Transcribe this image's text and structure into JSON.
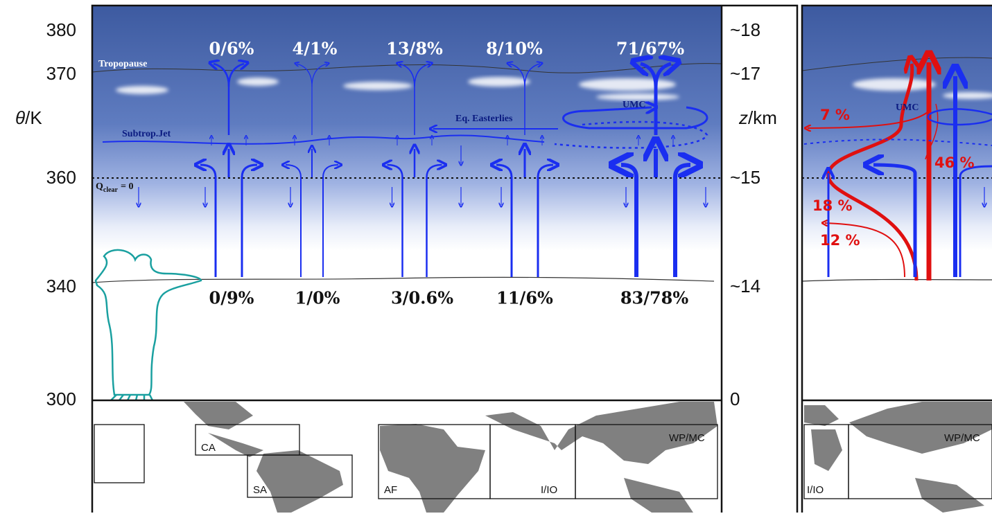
{
  "left_axis": {
    "ticks": [
      "380",
      "370",
      "360",
      "340",
      "300"
    ],
    "label_symbol": "θ",
    "label_unit": "/K"
  },
  "right_axis": {
    "ticks": [
      "~18",
      "~17",
      "~15",
      "~14",
      "0"
    ],
    "label_symbol": "z",
    "label_unit": "/km"
  },
  "top_fractions": [
    "0/6%",
    "4/1%",
    "13/8%",
    "8/10%",
    "71/67%"
  ],
  "bottom_fractions": [
    "0/9%",
    "1/0%",
    "3/0.6%",
    "11/6%",
    "83/78%"
  ],
  "labels": {
    "tropopause": "Tropopause",
    "subtropical_jet": "Subtrop.Jet",
    "easterlies": "Eq. Easterlies",
    "umc": "UMC",
    "q_symbol": "Q",
    "q_subscript": "clear",
    "q_value": "= 0"
  },
  "map_regions": [
    "CA",
    "SA",
    "AF",
    "I/IO",
    "WP/MC"
  ],
  "right_panel": {
    "umc": "UMC",
    "percentages": [
      "7 %",
      "46 %",
      "18 %",
      "12 %"
    ],
    "map_regions": [
      "WP/MC",
      "I/IO"
    ]
  }
}
